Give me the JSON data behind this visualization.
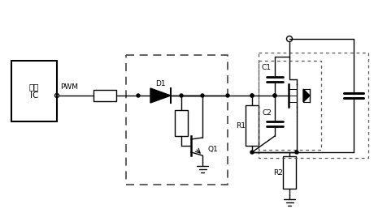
{
  "bg_color": "#ffffff",
  "lc": "#000000",
  "lc_gray": "#555555",
  "label_ic": "电源\nIC",
  "label_pwm": "PWM",
  "label_d1": "D1",
  "label_q1": "Q1",
  "label_r1": "R1",
  "label_r2": "R2",
  "label_c1": "C1",
  "label_c2": "C2"
}
